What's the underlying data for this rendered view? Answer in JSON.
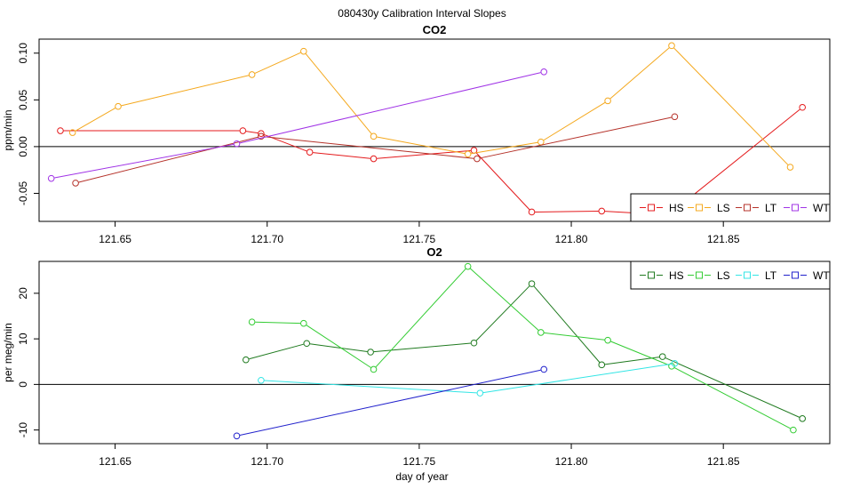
{
  "figure": {
    "suptitle": "080430y   Calibration Interval Slopes",
    "xlabel": "day of year"
  },
  "chart_data": [
    {
      "type": "line",
      "title": "CO2",
      "xlabel": "",
      "ylabel": "ppm/min",
      "xlim": [
        121.625,
        121.885
      ],
      "ylim": [
        -0.08,
        0.115
      ],
      "xticks": [
        121.65,
        121.7,
        121.75,
        121.8,
        121.85
      ],
      "xtick_labels": [
        "121.65",
        "121.70",
        "121.75",
        "121.80",
        "121.85"
      ],
      "yticks": [
        -0.05,
        0.0,
        0.05,
        0.1
      ],
      "ytick_labels": [
        "-0.05",
        "0.00",
        "0.05",
        "0.10"
      ],
      "hline": 0,
      "legend_position": "bottom-right",
      "series": [
        {
          "name": "HS",
          "color": "#e41a1c",
          "x": [
            121.632,
            121.692,
            121.698,
            121.714,
            121.735,
            121.768,
            121.787,
            121.81,
            121.832,
            121.876
          ],
          "y": [
            0.017,
            0.017,
            0.014,
            -0.006,
            -0.013,
            -0.004,
            -0.07,
            -0.069,
            -0.073,
            0.042
          ]
        },
        {
          "name": "LS",
          "color": "#f4a81d",
          "x": [
            121.636,
            121.651,
            121.695,
            121.712,
            121.735,
            121.766,
            121.79,
            121.812,
            121.833,
            121.872
          ],
          "y": [
            0.015,
            0.043,
            0.077,
            0.102,
            0.011,
            -0.008,
            0.005,
            0.049,
            0.108,
            -0.022
          ]
        },
        {
          "name": "LT",
          "color": "#b5322a",
          "x": [
            121.637,
            121.698,
            121.769,
            121.834
          ],
          "y": [
            -0.039,
            0.011,
            -0.013,
            0.032
          ]
        },
        {
          "name": "WT",
          "color": "#a033e6",
          "x": [
            121.629,
            121.69,
            121.791
          ],
          "y": [
            -0.034,
            0.003,
            0.08
          ]
        }
      ]
    },
    {
      "type": "line",
      "title": "O2",
      "xlabel": "day of year",
      "ylabel": "per meg/min",
      "xlim": [
        121.625,
        121.885
      ],
      "ylim": [
        -13,
        27
      ],
      "xticks": [
        121.65,
        121.7,
        121.75,
        121.8,
        121.85
      ],
      "xtick_labels": [
        "121.65",
        "121.70",
        "121.75",
        "121.80",
        "121.85"
      ],
      "yticks": [
        -10,
        0,
        10,
        20
      ],
      "ytick_labels": [
        "-10",
        "0",
        "10",
        "20"
      ],
      "hline": 0,
      "legend_position": "top-right",
      "series": [
        {
          "name": "HS",
          "color": "#1f7a1f",
          "x": [
            121.693,
            121.713,
            121.734,
            121.768,
            121.787,
            121.81,
            121.83,
            121.876
          ],
          "y": [
            5.4,
            9.0,
            7.1,
            9.1,
            22.1,
            4.3,
            6.1,
            -7.5
          ]
        },
        {
          "name": "LS",
          "color": "#33cc33",
          "x": [
            121.695,
            121.712,
            121.735,
            121.766,
            121.79,
            121.812,
            121.833,
            121.873
          ],
          "y": [
            13.7,
            13.4,
            3.3,
            25.9,
            11.4,
            9.7,
            4.0,
            -10.0
          ]
        },
        {
          "name": "LT",
          "color": "#33e5e5",
          "x": [
            121.698,
            121.77,
            121.834
          ],
          "y": [
            0.9,
            -1.9,
            4.6
          ]
        },
        {
          "name": "WT",
          "color": "#2222cc",
          "x": [
            121.69,
            121.791
          ],
          "y": [
            -11.3,
            3.3
          ]
        }
      ]
    }
  ]
}
